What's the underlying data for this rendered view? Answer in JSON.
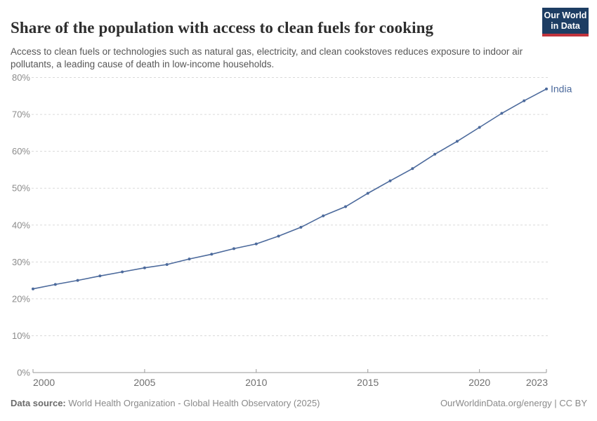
{
  "header": {
    "title": "Share of the population with access to clean fuels for cooking",
    "subtitle": "Access to clean fuels or technologies such as natural gas, electricity, and clean cookstoves reduces exposure to indoor air pollutants, a leading cause of death in low-income households.",
    "logo": {
      "line1": "Our World",
      "line2": "in Data",
      "bg_color": "#1d3d63",
      "accent_color": "#c0333c"
    }
  },
  "chart_data": {
    "type": "line",
    "title": "Share of the population with access to clean fuels for cooking",
    "xlabel": "",
    "ylabel": "",
    "xlim": [
      2000,
      2023
    ],
    "ylim": [
      0,
      80
    ],
    "grid": "horizontal-dashed",
    "legend_position": "end-of-line-label",
    "x": [
      2000,
      2001,
      2002,
      2003,
      2004,
      2005,
      2006,
      2007,
      2008,
      2009,
      2010,
      2011,
      2012,
      2013,
      2014,
      2015,
      2016,
      2017,
      2018,
      2019,
      2020,
      2021,
      2022,
      2023
    ],
    "series": [
      {
        "name": "India",
        "color": "#4C6A9C",
        "values": [
          22.7,
          23.9,
          25.0,
          26.2,
          27.3,
          28.4,
          29.3,
          30.8,
          32.1,
          33.6,
          34.9,
          37.0,
          39.4,
          42.5,
          45.0,
          48.6,
          52.0,
          55.3,
          59.2,
          62.7,
          66.5,
          70.3,
          73.7,
          76.9
        ]
      }
    ],
    "x_tick_values": [
      2000,
      2005,
      2010,
      2015,
      2020,
      2023
    ],
    "x_tick_labels": [
      "2000",
      "2005",
      "2010",
      "2015",
      "2020",
      "2023"
    ],
    "y_tick_values": [
      0,
      10,
      20,
      30,
      40,
      50,
      60,
      70,
      80
    ],
    "y_tick_labels": [
      "0%",
      "10%",
      "20%",
      "30%",
      "40%",
      "50%",
      "60%",
      "70%",
      "80%"
    ],
    "colors": {
      "gridline": "#dadada",
      "axis": "#9a9a9a",
      "y_tick_text": "#8c8c8c",
      "x_tick_text": "#707070"
    }
  },
  "footer": {
    "datasource_label": "Data source:",
    "datasource_text": " World Health Organization - Global Health Observatory (2025)",
    "credit_text": "OurWorldinData.org/energy | CC BY"
  }
}
